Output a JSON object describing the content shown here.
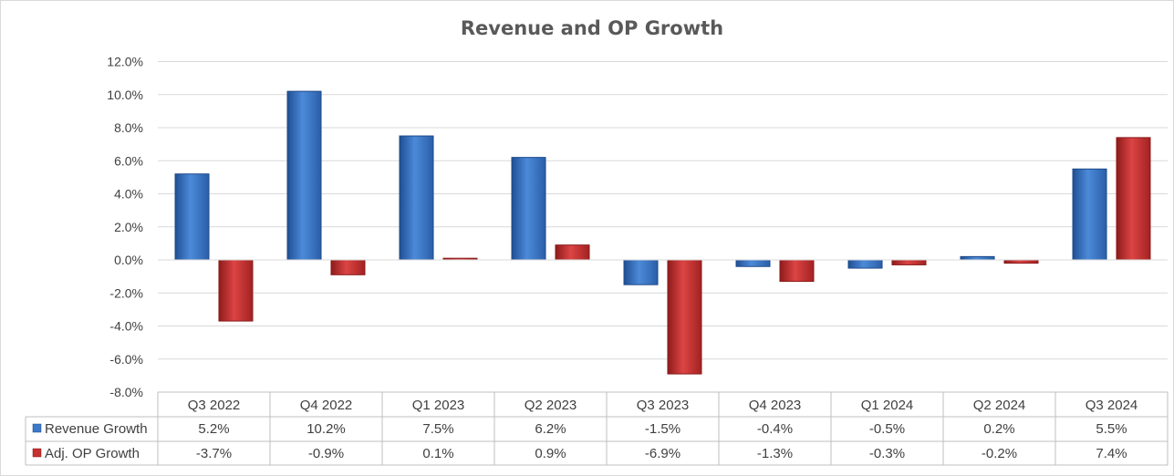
{
  "chart_data": {
    "type": "bar",
    "title": "Revenue and OP Growth",
    "categories": [
      "Q3 2022",
      "Q4 2022",
      "Q1 2023",
      "Q2 2023",
      "Q3 2023",
      "Q4 2023",
      "Q1 2024",
      "Q2 2024",
      "Q3 2024"
    ],
    "series": [
      {
        "name": "Revenue Growth",
        "color": "#3A78C9",
        "values": [
          5.2,
          10.2,
          7.5,
          6.2,
          -1.5,
          -0.4,
          -0.5,
          0.2,
          5.5
        ],
        "labels": [
          "5.2%",
          "10.2%",
          "7.5%",
          "6.2%",
          "-1.5%",
          "-0.4%",
          "-0.5%",
          "0.2%",
          "5.5%"
        ]
      },
      {
        "name": "Adj. OP Growth",
        "color": "#C63030",
        "values": [
          -3.7,
          -0.9,
          0.1,
          0.9,
          -6.9,
          -1.3,
          -0.3,
          -0.2,
          7.4
        ],
        "labels": [
          "-3.7%",
          "-0.9%",
          "0.1%",
          "0.9%",
          "-6.9%",
          "-1.3%",
          "-0.3%",
          "-0.2%",
          "7.4%"
        ]
      }
    ],
    "ylim": [
      -8,
      12
    ],
    "yticks": [
      "12.0%",
      "10.0%",
      "8.0%",
      "6.0%",
      "4.0%",
      "2.0%",
      "0.0%",
      "-2.0%",
      "-4.0%",
      "-6.0%",
      "-8.0%"
    ],
    "grid": true,
    "legend": "data-table-left"
  }
}
